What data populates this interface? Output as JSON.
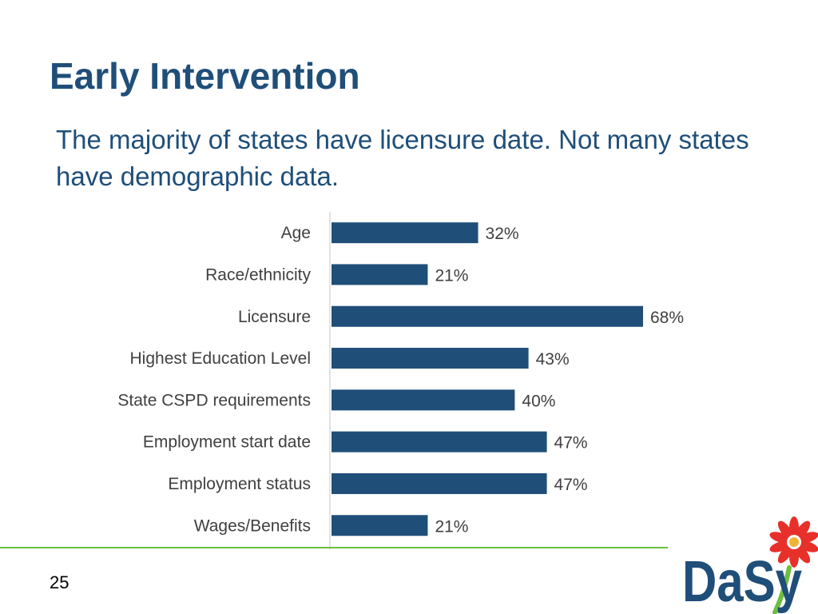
{
  "slide": {
    "title": "Early Intervention",
    "subtitle": "The majority of states have licensure date.  Not many states have demographic data.",
    "page_number": "25"
  },
  "logo": {
    "text": "DaSy",
    "text_color": "#1f4e79",
    "flower_color": "#e8302a",
    "flower_center_color": "#f2b233",
    "stem_color": "#6bbf3f"
  },
  "colors": {
    "bar": "#1f4e79",
    "label_text": "#404040",
    "axis": "#d9d9d9",
    "accent_line": "#6bbf3f"
  },
  "chart_data": {
    "type": "bar",
    "orientation": "horizontal",
    "categories": [
      "Age",
      "Race/ethnicity",
      "Licensure",
      "Highest Education Level",
      "State CSPD requirements",
      "Employment start date",
      "Employment status",
      "Wages/Benefits"
    ],
    "values": [
      32,
      21,
      68,
      43,
      40,
      47,
      47,
      21
    ],
    "labels": [
      "32%",
      "21%",
      "68%",
      "43%",
      "40%",
      "47%",
      "47%",
      "21%"
    ],
    "unit": "%",
    "xlim": [
      0,
      100
    ],
    "grid": false,
    "legend": "none"
  }
}
